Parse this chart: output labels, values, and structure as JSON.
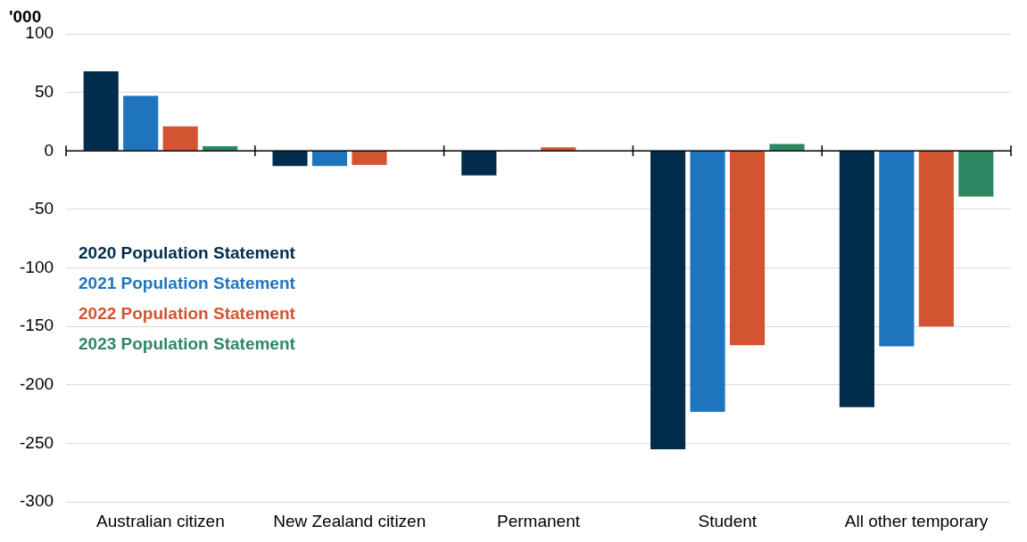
{
  "chart_data": {
    "type": "bar",
    "ylabel": "'000",
    "categories": [
      "Australian citizen",
      "New Zealand citizen",
      "Permanent",
      "Student",
      "All other temporary"
    ],
    "series": [
      {
        "name": "2020 Population Statement",
        "color": "#012d4a",
        "values": [
          68,
          -13,
          -21,
          -255,
          -219
        ]
      },
      {
        "name": "2021 Population Statement",
        "color": "#1e75bd",
        "values": [
          47,
          -13,
          null,
          -223,
          -167
        ]
      },
      {
        "name": "2022 Population Statement",
        "color": "#d25431",
        "values": [
          21,
          -12,
          3,
          -166,
          -150
        ]
      },
      {
        "name": "2023 Population Statement",
        "color": "#2e8763",
        "values": [
          4,
          null,
          null,
          6,
          -39
        ]
      }
    ],
    "ylim": [
      -300,
      100
    ],
    "yticks": [
      -300,
      -250,
      -200,
      -150,
      -100,
      -50,
      0,
      50,
      100
    ],
    "grid": "y",
    "legend": "left"
  }
}
